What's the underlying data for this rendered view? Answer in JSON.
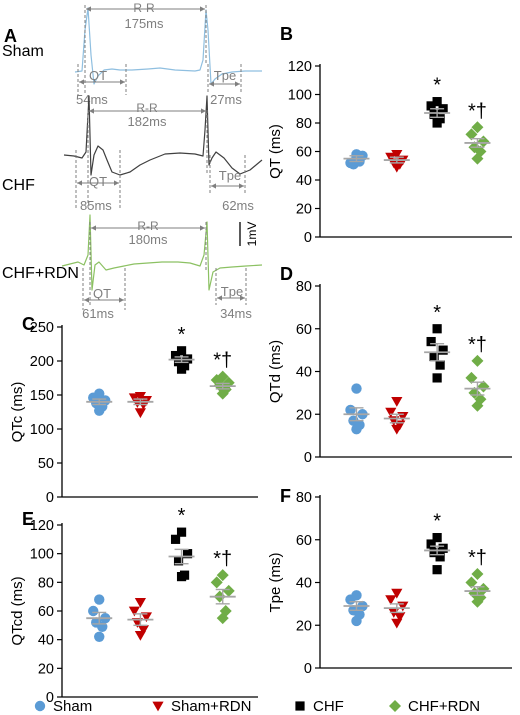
{
  "colors": {
    "sham": "#5b9bd5",
    "sham_rdn": "#c00000",
    "chf": "#000000",
    "chf_rdn": "#70ad47",
    "trace_sham": "#8fbfe0",
    "trace_chf": "#404040",
    "trace_chf_rdn": "#8cc163",
    "mean_bar": "#a6a6a6",
    "annotation": "#7f7f7f"
  },
  "panel_a": {
    "label": "A",
    "scale_bar_label": "1mV",
    "traces": [
      {
        "name": "Sham",
        "rr_label": "R-R",
        "rr": "175ms",
        "qt_label": "QT",
        "qt": "54ms",
        "tpe_label": "Tpe",
        "tpe": "27ms"
      },
      {
        "name": "CHF",
        "rr_label": "R-R",
        "rr": "182ms",
        "qt_label": "QT",
        "qt": "85ms",
        "tpe_label": "Tpe",
        "tpe": "62ms"
      },
      {
        "name": "CHF+RDN",
        "rr_label": "R-R",
        "rr": "180ms",
        "qt_label": "QT",
        "qt": "61ms",
        "tpe_label": "Tpe",
        "tpe": "34ms"
      }
    ]
  },
  "legend": {
    "entries": [
      {
        "label": "Sham",
        "marker": "circle",
        "color_key": "sham"
      },
      {
        "label": "Sham+RDN",
        "marker": "triangle-down",
        "color_key": "sham_rdn"
      },
      {
        "label": "CHF",
        "marker": "square",
        "color_key": "chf"
      },
      {
        "label": "CHF+RDN",
        "marker": "diamond",
        "color_key": "chf_rdn"
      }
    ]
  },
  "chart_data": [
    {
      "panel": "B",
      "type": "scatter",
      "ylabel": "QT (ms)",
      "ylim": [
        0,
        120
      ],
      "yticks": [
        0,
        20,
        40,
        60,
        80,
        100,
        120
      ],
      "groups": [
        {
          "name": "Sham",
          "values": [
            56,
            52,
            57,
            51,
            53,
            58
          ],
          "mean": 55,
          "sem": 2
        },
        {
          "name": "Sham+RDN",
          "values": [
            58,
            56,
            54,
            52,
            51,
            49
          ],
          "mean": 54,
          "sem": 2
        },
        {
          "name": "CHF",
          "values": [
            95,
            92,
            90,
            86,
            83,
            80
          ],
          "mean": 87,
          "sem": 3
        },
        {
          "name": "CHF+RDN",
          "values": [
            77,
            72,
            67,
            63,
            60,
            55
          ],
          "mean": 66,
          "sem": 3
        }
      ],
      "annotations": [
        {
          "group": "CHF",
          "text": "*"
        },
        {
          "group": "CHF+RDN",
          "text": "*†"
        }
      ]
    },
    {
      "panel": "C",
      "type": "scatter",
      "ylabel": "QTc (ms)",
      "ylim": [
        0,
        250
      ],
      "yticks": [
        0,
        50,
        100,
        150,
        200,
        250
      ],
      "groups": [
        {
          "name": "Sham",
          "values": [
            152,
            146,
            142,
            138,
            133,
            127
          ],
          "mean": 140,
          "sem": 4
        },
        {
          "name": "Sham+RDN",
          "values": [
            148,
            146,
            142,
            139,
            136,
            124
          ],
          "mean": 140,
          "sem": 4
        },
        {
          "name": "CHF",
          "values": [
            215,
            208,
            203,
            199,
            193,
            188
          ],
          "mean": 202,
          "sem": 4
        },
        {
          "name": "CHF+RDN",
          "values": [
            177,
            172,
            168,
            164,
            158,
            152
          ],
          "mean": 163,
          "sem": 4
        }
      ],
      "annotations": [
        {
          "group": "CHF",
          "text": "*"
        },
        {
          "group": "CHF+RDN",
          "text": "*†"
        }
      ]
    },
    {
      "panel": "D",
      "type": "scatter",
      "ylabel": "QTd (ms)",
      "ylim": [
        0,
        80
      ],
      "yticks": [
        0,
        20,
        40,
        60,
        80
      ],
      "groups": [
        {
          "name": "Sham",
          "values": [
            32,
            22,
            20,
            17,
            15,
            13
          ],
          "mean": 20,
          "sem": 3
        },
        {
          "name": "Sham+RDN",
          "values": [
            26,
            21,
            19,
            17,
            15,
            13
          ],
          "mean": 18,
          "sem": 2
        },
        {
          "name": "CHF",
          "values": [
            60,
            54,
            50,
            47,
            43,
            37
          ],
          "mean": 49,
          "sem": 4
        },
        {
          "name": "CHF+RDN",
          "values": [
            45,
            37,
            33,
            30,
            27,
            24
          ],
          "mean": 32,
          "sem": 3
        }
      ],
      "annotations": [
        {
          "group": "CHF",
          "text": "*"
        },
        {
          "group": "CHF+RDN",
          "text": "*†"
        }
      ]
    },
    {
      "panel": "E",
      "type": "scatter",
      "ylabel": "QTcd (ms)",
      "ylim": [
        0,
        120
      ],
      "yticks": [
        0,
        20,
        40,
        60,
        80,
        100,
        120
      ],
      "groups": [
        {
          "name": "Sham",
          "values": [
            68,
            60,
            55,
            52,
            49,
            42
          ],
          "mean": 55,
          "sem": 4
        },
        {
          "name": "Sham+RDN",
          "values": [
            66,
            60,
            56,
            52,
            47,
            43
          ],
          "mean": 54,
          "sem": 4
        },
        {
          "name": "CHF",
          "values": [
            115,
            110,
            100,
            95,
            85,
            84
          ],
          "mean": 98,
          "sem": 5
        },
        {
          "name": "CHF+RDN",
          "values": [
            85,
            80,
            74,
            70,
            60,
            55
          ],
          "mean": 70,
          "sem": 5
        }
      ],
      "annotations": [
        {
          "group": "CHF",
          "text": "*"
        },
        {
          "group": "CHF+RDN",
          "text": "*†"
        }
      ]
    },
    {
      "panel": "F",
      "type": "scatter",
      "ylabel": "Tpe (ms)",
      "ylim": [
        0,
        80
      ],
      "yticks": [
        0,
        20,
        40,
        60,
        80
      ],
      "groups": [
        {
          "name": "Sham",
          "values": [
            34,
            32,
            29,
            27,
            25,
            22
          ],
          "mean": 29,
          "sem": 2
        },
        {
          "name": "Sham+RDN",
          "values": [
            35,
            32,
            29,
            26,
            24,
            21
          ],
          "mean": 28,
          "sem": 2
        },
        {
          "name": "CHF",
          "values": [
            61,
            58,
            56,
            54,
            52,
            46
          ],
          "mean": 55,
          "sem": 2
        },
        {
          "name": "CHF+RDN",
          "values": [
            44,
            40,
            37,
            35,
            33,
            31
          ],
          "mean": 36,
          "sem": 2
        }
      ],
      "annotations": [
        {
          "group": "CHF",
          "text": "*"
        },
        {
          "group": "CHF+RDN",
          "text": "*†"
        }
      ]
    }
  ]
}
